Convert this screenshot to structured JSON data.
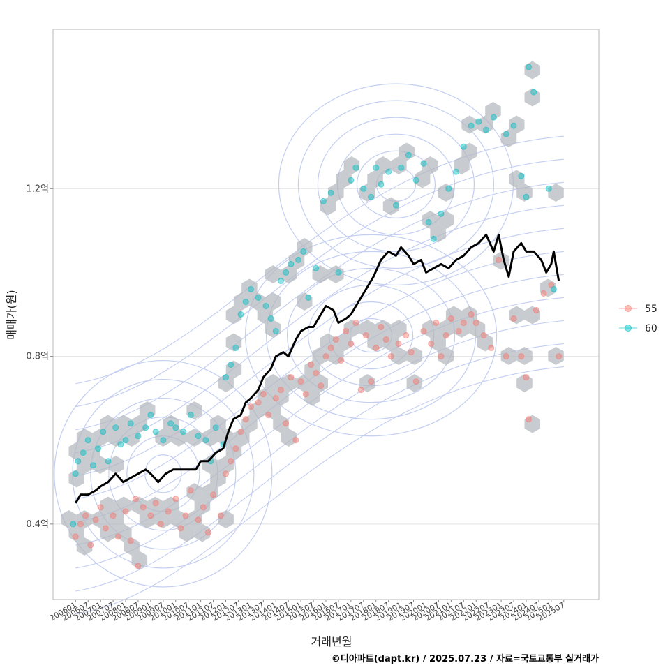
{
  "chart_data": {
    "type": "scatter",
    "xlabel": "거래년월",
    "ylabel": "매매가(원)",
    "caption": "©디아파트(dapt.kr) / 2025.07.23 / 자료=국토교통부 실거래가",
    "y_ticks": [
      {
        "value": 0.4,
        "label": "0.4억"
      },
      {
        "value": 0.8,
        "label": "0.8억"
      },
      {
        "value": 1.2,
        "label": "1.2억"
      }
    ],
    "x_tick_labels": [
      "200601",
      "200607",
      "200701",
      "200707",
      "200801",
      "200807",
      "200901",
      "200907",
      "201001",
      "201007",
      "201101",
      "201107",
      "201201",
      "201207",
      "201301",
      "201307",
      "201401",
      "201407",
      "201501",
      "201507",
      "201601",
      "201607",
      "201701",
      "201707",
      "201801",
      "201807",
      "201901",
      "201907",
      "202001",
      "202007",
      "202101",
      "202107",
      "202201",
      "202207",
      "202301",
      "202307",
      "202401",
      "202407",
      "202501",
      "202507"
    ],
    "xlim_months": [
      2005.1,
      2026.9
    ],
    "ylim": [
      0.22,
      1.58
    ],
    "grid": true,
    "legend_position": "right",
    "series": [
      {
        "name": "55",
        "color": "#F8766D",
        "points": [
          [
            2006.0,
            0.37
          ],
          [
            2006.2,
            0.4
          ],
          [
            2006.4,
            0.42
          ],
          [
            2006.6,
            0.35
          ],
          [
            2006.8,
            0.41
          ],
          [
            2007.0,
            0.44
          ],
          [
            2007.2,
            0.39
          ],
          [
            2007.5,
            0.42
          ],
          [
            2007.7,
            0.37
          ],
          [
            2008.0,
            0.43
          ],
          [
            2008.2,
            0.36
          ],
          [
            2008.4,
            0.46
          ],
          [
            2008.5,
            0.3
          ],
          [
            2008.7,
            0.44
          ],
          [
            2009.0,
            0.42
          ],
          [
            2009.2,
            0.45
          ],
          [
            2009.4,
            0.4
          ],
          [
            2009.7,
            0.43
          ],
          [
            2010.0,
            0.46
          ],
          [
            2010.2,
            0.39
          ],
          [
            2010.4,
            0.42
          ],
          [
            2010.6,
            0.48
          ],
          [
            2010.9,
            0.41
          ],
          [
            2011.1,
            0.44
          ],
          [
            2011.3,
            0.38
          ],
          [
            2011.5,
            0.47
          ],
          [
            2011.8,
            0.42
          ],
          [
            2012.0,
            0.52
          ],
          [
            2012.2,
            0.55
          ],
          [
            2012.4,
            0.58
          ],
          [
            2012.6,
            0.62
          ],
          [
            2012.8,
            0.65
          ],
          [
            2013.0,
            0.68
          ],
          [
            2013.3,
            0.69
          ],
          [
            2013.5,
            0.71
          ],
          [
            2013.7,
            0.66
          ],
          [
            2014.0,
            0.7
          ],
          [
            2014.2,
            0.72
          ],
          [
            2014.4,
            0.64
          ],
          [
            2014.6,
            0.75
          ],
          [
            2014.8,
            0.6
          ],
          [
            2015.0,
            0.74
          ],
          [
            2015.2,
            0.71
          ],
          [
            2015.4,
            0.78
          ],
          [
            2015.6,
            0.76
          ],
          [
            2015.8,
            0.73
          ],
          [
            2016.0,
            0.8
          ],
          [
            2016.2,
            0.82
          ],
          [
            2016.4,
            0.84
          ],
          [
            2016.6,
            0.79
          ],
          [
            2016.8,
            0.86
          ],
          [
            2017.0,
            0.83
          ],
          [
            2017.2,
            0.88
          ],
          [
            2017.4,
            0.72
          ],
          [
            2017.6,
            0.85
          ],
          [
            2017.8,
            0.74
          ],
          [
            2018.0,
            0.82
          ],
          [
            2018.2,
            0.87
          ],
          [
            2018.4,
            0.84
          ],
          [
            2018.6,
            0.8
          ],
          [
            2018.9,
            0.83
          ],
          [
            2019.2,
            0.85
          ],
          [
            2019.4,
            0.81
          ],
          [
            2019.6,
            0.74
          ],
          [
            2019.9,
            0.86
          ],
          [
            2020.2,
            0.83
          ],
          [
            2020.4,
            0.88
          ],
          [
            2020.6,
            0.8
          ],
          [
            2020.8,
            0.85
          ],
          [
            2021.0,
            0.89
          ],
          [
            2021.3,
            0.86
          ],
          [
            2021.5,
            0.88
          ],
          [
            2021.8,
            0.9
          ],
          [
            2022.0,
            0.88
          ],
          [
            2022.3,
            0.85
          ],
          [
            2022.6,
            0.82
          ],
          [
            2022.9,
            1.03
          ],
          [
            2023.2,
            0.8
          ],
          [
            2023.5,
            0.89
          ],
          [
            2023.8,
            0.8
          ],
          [
            2024.0,
            0.75
          ],
          [
            2024.1,
            0.65
          ],
          [
            2024.4,
            0.91
          ],
          [
            2024.7,
            0.95
          ],
          [
            2025.0,
            0.97
          ],
          [
            2025.3,
            0.8
          ]
        ]
      },
      {
        "name": "60",
        "color": "#00BFC4",
        "points": [
          [
            2005.9,
            0.4
          ],
          [
            2006.0,
            0.52
          ],
          [
            2006.1,
            0.55
          ],
          [
            2006.3,
            0.57
          ],
          [
            2006.5,
            0.6
          ],
          [
            2006.7,
            0.54
          ],
          [
            2006.9,
            0.58
          ],
          [
            2007.1,
            0.62
          ],
          [
            2007.3,
            0.55
          ],
          [
            2007.6,
            0.63
          ],
          [
            2007.8,
            0.59
          ],
          [
            2008.0,
            0.6
          ],
          [
            2008.2,
            0.64
          ],
          [
            2008.5,
            0.61
          ],
          [
            2008.8,
            0.63
          ],
          [
            2009.0,
            0.66
          ],
          [
            2009.2,
            0.62
          ],
          [
            2009.5,
            0.6
          ],
          [
            2009.8,
            0.64
          ],
          [
            2010.0,
            0.63
          ],
          [
            2010.3,
            0.62
          ],
          [
            2010.6,
            0.66
          ],
          [
            2010.9,
            0.61
          ],
          [
            2011.2,
            0.6
          ],
          [
            2011.4,
            0.55
          ],
          [
            2011.6,
            0.63
          ],
          [
            2011.9,
            0.59
          ],
          [
            2012.0,
            0.75
          ],
          [
            2012.2,
            0.78
          ],
          [
            2012.4,
            0.82
          ],
          [
            2012.6,
            0.9
          ],
          [
            2012.8,
            0.93
          ],
          [
            2013.0,
            0.96
          ],
          [
            2013.3,
            0.94
          ],
          [
            2013.6,
            0.92
          ],
          [
            2013.8,
            0.89
          ],
          [
            2014.0,
            0.86
          ],
          [
            2014.2,
            0.98
          ],
          [
            2014.4,
            1.0
          ],
          [
            2014.6,
            1.02
          ],
          [
            2014.9,
            1.03
          ],
          [
            2015.1,
            1.05
          ],
          [
            2015.3,
            0.94
          ],
          [
            2015.6,
            1.01
          ],
          [
            2015.9,
            1.17
          ],
          [
            2016.2,
            1.19
          ],
          [
            2016.5,
            1.0
          ],
          [
            2017.0,
            1.22
          ],
          [
            2017.2,
            1.25
          ],
          [
            2017.5,
            1.2
          ],
          [
            2017.8,
            1.18
          ],
          [
            2018.0,
            1.25
          ],
          [
            2018.2,
            1.21
          ],
          [
            2018.5,
            1.24
          ],
          [
            2018.8,
            1.16
          ],
          [
            2019.0,
            1.25
          ],
          [
            2019.3,
            1.28
          ],
          [
            2019.6,
            1.22
          ],
          [
            2019.9,
            1.26
          ],
          [
            2020.1,
            1.12
          ],
          [
            2020.3,
            1.08
          ],
          [
            2020.6,
            1.14
          ],
          [
            2020.9,
            1.2
          ],
          [
            2021.2,
            1.24
          ],
          [
            2021.5,
            1.3
          ],
          [
            2021.8,
            1.35
          ],
          [
            2022.1,
            1.36
          ],
          [
            2022.4,
            1.34
          ],
          [
            2022.7,
            1.37
          ],
          [
            2023.2,
            1.33
          ],
          [
            2023.5,
            1.35
          ],
          [
            2023.8,
            1.23
          ],
          [
            2024.0,
            1.18
          ],
          [
            2024.1,
            1.49
          ],
          [
            2024.3,
            1.43
          ],
          [
            2024.9,
            1.2
          ],
          [
            2025.1,
            0.96
          ]
        ]
      }
    ],
    "avg_line": {
      "color": "#000000",
      "points": [
        [
          2006.0,
          0.45
        ],
        [
          2006.2,
          0.47
        ],
        [
          2006.5,
          0.47
        ],
        [
          2006.8,
          0.48
        ],
        [
          2007.0,
          0.49
        ],
        [
          2007.3,
          0.5
        ],
        [
          2007.6,
          0.52
        ],
        [
          2007.9,
          0.5
        ],
        [
          2008.2,
          0.51
        ],
        [
          2008.5,
          0.52
        ],
        [
          2008.8,
          0.53
        ],
        [
          2009.0,
          0.52
        ],
        [
          2009.3,
          0.5
        ],
        [
          2009.6,
          0.52
        ],
        [
          2009.9,
          0.53
        ],
        [
          2010.2,
          0.53
        ],
        [
          2010.5,
          0.53
        ],
        [
          2010.8,
          0.53
        ],
        [
          2011.0,
          0.55
        ],
        [
          2011.3,
          0.55
        ],
        [
          2011.6,
          0.57
        ],
        [
          2011.9,
          0.58
        ],
        [
          2012.1,
          0.62
        ],
        [
          2012.3,
          0.65
        ],
        [
          2012.6,
          0.66
        ],
        [
          2012.8,
          0.69
        ],
        [
          2013.0,
          0.7
        ],
        [
          2013.3,
          0.72
        ],
        [
          2013.5,
          0.75
        ],
        [
          2013.8,
          0.77
        ],
        [
          2014.0,
          0.8
        ],
        [
          2014.3,
          0.81
        ],
        [
          2014.5,
          0.8
        ],
        [
          2014.8,
          0.84
        ],
        [
          2015.0,
          0.86
        ],
        [
          2015.3,
          0.87
        ],
        [
          2015.5,
          0.87
        ],
        [
          2015.8,
          0.9
        ],
        [
          2016.0,
          0.92
        ],
        [
          2016.3,
          0.91
        ],
        [
          2016.5,
          0.88
        ],
        [
          2016.8,
          0.89
        ],
        [
          2017.0,
          0.9
        ],
        [
          2017.3,
          0.93
        ],
        [
          2017.6,
          0.96
        ],
        [
          2017.9,
          0.99
        ],
        [
          2018.2,
          1.03
        ],
        [
          2018.5,
          1.05
        ],
        [
          2018.8,
          1.04
        ],
        [
          2019.0,
          1.06
        ],
        [
          2019.3,
          1.04
        ],
        [
          2019.5,
          1.02
        ],
        [
          2019.8,
          1.03
        ],
        [
          2020.0,
          1.0
        ],
        [
          2020.3,
          1.01
        ],
        [
          2020.6,
          1.02
        ],
        [
          2020.9,
          1.01
        ],
        [
          2021.2,
          1.03
        ],
        [
          2021.5,
          1.04
        ],
        [
          2021.8,
          1.06
        ],
        [
          2022.1,
          1.07
        ],
        [
          2022.4,
          1.09
        ],
        [
          2022.7,
          1.05
        ],
        [
          2022.9,
          1.09
        ],
        [
          2023.1,
          1.03
        ],
        [
          2023.3,
          0.99
        ],
        [
          2023.5,
          1.05
        ],
        [
          2023.8,
          1.07
        ],
        [
          2024.0,
          1.05
        ],
        [
          2024.3,
          1.05
        ],
        [
          2024.6,
          1.03
        ],
        [
          2024.8,
          1.0
        ],
        [
          2025.0,
          1.02
        ],
        [
          2025.1,
          1.05
        ],
        [
          2025.3,
          0.98
        ]
      ]
    }
  }
}
